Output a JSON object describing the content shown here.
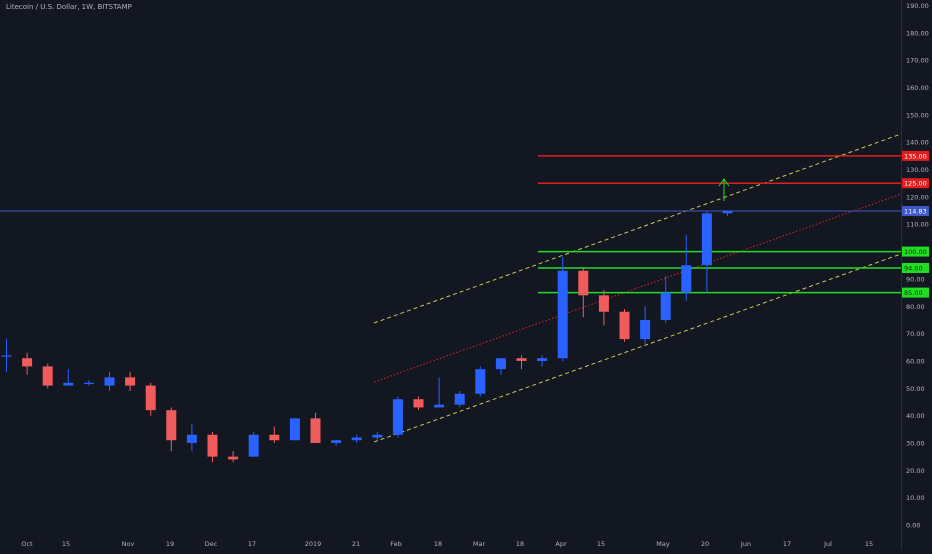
{
  "header": {
    "symbol": "Litecoin / U.S. Dollar",
    "interval": "1W",
    "exchange": "BITSTAMP",
    "separator": ", "
  },
  "colors": {
    "background": "#131722",
    "up": "#2962ff",
    "down": "#f05c5c",
    "axis_text": "#b2b5be",
    "price_line": "#3d58c8",
    "red_level": "#e01e1e",
    "green_level": "#22dd22",
    "channel_dashes": "#c9c94a",
    "mid_dots": "#e02424",
    "arrow": "#22dd22"
  },
  "chart_data": {
    "type": "candlestick",
    "y_ticks": [
      "0.00",
      "10.00",
      "20.00",
      "30.00",
      "40.00",
      "50.00",
      "60.00",
      "70.00",
      "80.00",
      "90.00",
      "100.00",
      "110.00",
      "120.00",
      "130.00",
      "140.00",
      "150.00",
      "160.00",
      "170.00",
      "180.00",
      "190.00"
    ],
    "x_ticks": [
      "Oct",
      "15",
      "Nov",
      "19",
      "Dec",
      "17",
      "2019",
      "21",
      "Feb",
      "18",
      "Mar",
      "18",
      "Apr",
      "15",
      "May",
      "20",
      "Jun",
      "17",
      "Jul",
      "15"
    ],
    "candles": [
      {
        "o": 62,
        "h": 68,
        "l": 56,
        "c": 62
      },
      {
        "o": 61,
        "h": 63,
        "l": 55,
        "c": 58
      },
      {
        "o": 58,
        "h": 59,
        "l": 50,
        "c": 51
      },
      {
        "o": 51,
        "h": 57,
        "l": 51,
        "c": 52
      },
      {
        "o": 52,
        "h": 53,
        "l": 51,
        "c": 52
      },
      {
        "o": 51,
        "h": 56,
        "l": 49,
        "c": 54
      },
      {
        "o": 54,
        "h": 56,
        "l": 49,
        "c": 51
      },
      {
        "o": 51,
        "h": 52,
        "l": 40,
        "c": 42
      },
      {
        "o": 42,
        "h": 43,
        "l": 27,
        "c": 31
      },
      {
        "o": 30,
        "h": 37,
        "l": 27,
        "c": 33
      },
      {
        "o": 33,
        "h": 34,
        "l": 23,
        "c": 25
      },
      {
        "o": 25,
        "h": 27,
        "l": 23,
        "c": 24
      },
      {
        "o": 25,
        "h": 34,
        "l": 25,
        "c": 33
      },
      {
        "o": 33,
        "h": 36,
        "l": 30,
        "c": 31
      },
      {
        "o": 31,
        "h": 39,
        "l": 31,
        "c": 39
      },
      {
        "o": 39,
        "h": 41,
        "l": 30,
        "c": 30
      },
      {
        "o": 30,
        "h": 31,
        "l": 29,
        "c": 31
      },
      {
        "o": 31,
        "h": 33,
        "l": 30,
        "c": 32
      },
      {
        "o": 32,
        "h": 34,
        "l": 31,
        "c": 33
      },
      {
        "o": 33,
        "h": 47,
        "l": 32,
        "c": 46
      },
      {
        "o": 46,
        "h": 47,
        "l": 42,
        "c": 43
      },
      {
        "o": 43,
        "h": 54,
        "l": 43,
        "c": 44
      },
      {
        "o": 44,
        "h": 49,
        "l": 43,
        "c": 48
      },
      {
        "o": 48,
        "h": 58,
        "l": 47,
        "c": 57
      },
      {
        "o": 57,
        "h": 61,
        "l": 55,
        "c": 61
      },
      {
        "o": 61,
        "h": 62,
        "l": 57,
        "c": 60
      },
      {
        "o": 60,
        "h": 62,
        "l": 58,
        "c": 61
      },
      {
        "o": 61,
        "h": 98,
        "l": 60,
        "c": 93
      },
      {
        "o": 93,
        "h": 94,
        "l": 76,
        "c": 84
      },
      {
        "o": 84,
        "h": 86,
        "l": 73,
        "c": 78
      },
      {
        "o": 78,
        "h": 79,
        "l": 67,
        "c": 68
      },
      {
        "o": 68,
        "h": 80,
        "l": 66,
        "c": 75
      },
      {
        "o": 75,
        "h": 91,
        "l": 74,
        "c": 85
      },
      {
        "o": 85,
        "h": 106,
        "l": 82,
        "c": 95
      },
      {
        "o": 95,
        "h": 115,
        "l": 85,
        "c": 114
      },
      {
        "o": 114,
        "h": 115,
        "l": 113,
        "c": 115
      }
    ],
    "current_price": "114.83",
    "levels": [
      {
        "label": "135.00",
        "value": 135,
        "kind": "resistance"
      },
      {
        "label": "125.00",
        "value": 125,
        "kind": "resistance"
      },
      {
        "label": "100.00",
        "value": 100,
        "kind": "support"
      },
      {
        "label": "94.00",
        "value": 94,
        "kind": "support"
      },
      {
        "label": "85.00",
        "value": 85,
        "kind": "support"
      }
    ],
    "ylim": [
      0,
      190
    ]
  }
}
